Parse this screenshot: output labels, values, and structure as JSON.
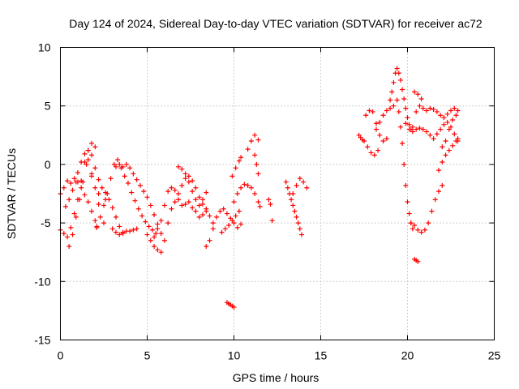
{
  "chart_data": {
    "type": "scatter",
    "title": "Day 124 of 2024, Sidereal Day-to-day VTEC variation (SDTVAR) for receiver ac72",
    "xlabel": "GPS time / hours",
    "ylabel": "SDTVAR / TECUs",
    "xlim": [
      0,
      25
    ],
    "ylim": [
      -15,
      10
    ],
    "xticks": [
      0,
      5,
      10,
      15,
      20,
      25
    ],
    "yticks": [
      -15,
      -10,
      -5,
      0,
      5,
      10
    ],
    "xtick_labels": [
      "0",
      "5",
      "10",
      "15",
      "20",
      "25"
    ],
    "ytick_labels": [
      "-15",
      "-10",
      "-5",
      "0",
      "5",
      "10"
    ],
    "grid": true,
    "marker": "+",
    "color": "#ff0000",
    "series": [
      {
        "name": "s1",
        "x": [
          0.0,
          0.2,
          0.4,
          0.6,
          0.8,
          1.0,
          1.2,
          1.4,
          1.6,
          1.8,
          2.0,
          2.1
        ],
        "y": [
          -2.5,
          -2.0,
          -1.4,
          -1.6,
          -1.2,
          -1.5,
          -2.0,
          -2.6,
          -3.2,
          -4.0,
          -4.8,
          -5.4
        ]
      },
      {
        "name": "s2",
        "x": [
          0.0,
          0.2,
          0.4,
          0.6,
          0.8,
          1.0,
          1.2,
          1.4,
          1.6,
          1.8,
          2.0
        ],
        "y": [
          -5.6,
          -5.9,
          -6.2,
          -5.4,
          -4.2,
          -3.0,
          -1.4,
          0.2,
          1.2,
          1.8,
          1.5
        ]
      },
      {
        "name": "s3",
        "x": [
          0.5,
          0.7,
          0.9,
          1.1,
          1.3,
          1.5,
          1.8,
          2.2,
          2.6
        ],
        "y": [
          -7.0,
          -6.0,
          -4.5,
          -3.0,
          -1.5,
          0.0,
          -1.0,
          -2.5,
          -3.0
        ]
      },
      {
        "name": "s4",
        "x": [
          0.3,
          0.5,
          0.7,
          0.9,
          1.0,
          1.2,
          1.4,
          1.6,
          1.8,
          2.0,
          2.2,
          2.5
        ],
        "y": [
          -3.6,
          -3.0,
          -2.2,
          -1.5,
          -0.7,
          0.2,
          0.9,
          0.4,
          -0.8,
          -2.0,
          -3.4,
          -5.0
        ]
      },
      {
        "name": "s5",
        "x": [
          1.6,
          1.8,
          2.0,
          2.2,
          2.4,
          2.6,
          2.8,
          3.0,
          3.2,
          3.4,
          3.6
        ],
        "y": [
          1.2,
          0.8,
          -0.3,
          -1.3,
          -2.0,
          -2.4,
          -3.0,
          -3.7,
          -4.5,
          -5.3,
          -5.8
        ]
      },
      {
        "name": "s6",
        "x": [
          2.1,
          2.3,
          2.5,
          2.7,
          2.9,
          3.1,
          3.3,
          3.5,
          3.7,
          3.9,
          4.1,
          4.3,
          4.5,
          4.7,
          4.9,
          5.1,
          5.3,
          5.5
        ],
        "y": [
          -5.3,
          -4.5,
          -3.5,
          -2.5,
          -1.2,
          0.0,
          0.4,
          -0.3,
          -1.0,
          -1.6,
          -2.4,
          -3.1,
          -3.8,
          -4.4,
          -4.9,
          -5.3,
          -5.6,
          -5.9
        ]
      },
      {
        "name": "s7",
        "x": [
          3.2,
          3.4,
          3.6,
          3.8,
          4.0,
          4.2,
          4.4,
          4.6,
          4.8,
          5.0,
          5.2,
          5.4,
          5.6,
          5.8
        ],
        "y": [
          -0.2,
          0.0,
          -0.2,
          0.0,
          -0.3,
          -0.8,
          -1.3,
          -1.8,
          -2.3,
          -2.8,
          -3.5,
          -4.3,
          -5.1,
          -5.9
        ]
      },
      {
        "name": "s8",
        "x": [
          3.0,
          3.2,
          3.4,
          3.6,
          3.8,
          4.0,
          4.2,
          4.4
        ],
        "y": [
          -5.5,
          -5.8,
          -6.0,
          -5.9,
          -5.7,
          -5.7,
          -5.6,
          -5.5
        ]
      },
      {
        "name": "s9",
        "x": [
          5.0,
          5.2,
          5.4,
          5.6,
          5.8,
          6.0,
          6.2,
          6.4,
          6.6,
          6.8,
          7.0,
          7.2,
          7.4,
          7.6,
          7.8,
          8.0,
          8.2,
          8.4
        ],
        "y": [
          -6.0,
          -6.5,
          -6.2,
          -5.5,
          -4.8,
          -3.5,
          -2.3,
          -2.0,
          -2.2,
          -3.0,
          -3.5,
          -3.4,
          -3.2,
          -3.7,
          -4.0,
          -4.5,
          -4.3,
          -4.0
        ]
      },
      {
        "name": "s10",
        "x": [
          5.4,
          5.6,
          5.8,
          6.0,
          6.2,
          6.4,
          6.6,
          6.8,
          7.0,
          7.2,
          7.4,
          7.6,
          7.8,
          8.0,
          8.2,
          8.4
        ],
        "y": [
          -7.0,
          -7.3,
          -7.5,
          -6.5,
          -5.0,
          -3.8,
          -3.2,
          -2.5,
          -1.8,
          -1.2,
          -1.5,
          -2.3,
          -3.0,
          -3.5,
          -3.0,
          -2.4
        ]
      },
      {
        "name": "s11",
        "x": [
          6.8,
          7.0,
          7.2,
          7.4,
          7.6,
          7.8,
          8.0,
          8.2,
          8.4,
          8.6,
          8.8
        ],
        "y": [
          -0.2,
          -0.4,
          -0.8,
          -1.0,
          -1.4,
          -2.0,
          -2.8,
          -3.4,
          -3.8,
          -4.4,
          -5.0
        ]
      },
      {
        "name": "s12",
        "x": [
          8.4,
          8.6,
          8.8,
          9.0,
          9.2,
          9.4,
          9.6,
          9.8,
          10.0,
          10.2,
          10.4
        ],
        "y": [
          -7.0,
          -6.5,
          -5.5,
          -4.5,
          -4.0,
          -3.8,
          -4.2,
          -4.6,
          -5.0,
          -5.4,
          -5.1
        ]
      },
      {
        "name": "s13",
        "x": [
          9.3,
          9.5,
          9.7,
          9.9,
          10.1,
          10.3
        ],
        "y": [
          -5.8,
          -5.5,
          -5.2,
          -4.8,
          -4.4,
          -4.0
        ]
      },
      {
        "name": "s14",
        "x": [
          10.0,
          10.2,
          10.4,
          10.6,
          10.8,
          11.0,
          11.2,
          11.4,
          11.5
        ],
        "y": [
          -3.2,
          -2.5,
          -2.0,
          -1.7,
          -1.8,
          -2.0,
          -2.5,
          -3.2,
          -3.6
        ]
      },
      {
        "name": "s15",
        "x": [
          9.9,
          10.1,
          10.3,
          10.4
        ],
        "y": [
          -1.0,
          -0.3,
          0.3,
          0.6
        ]
      },
      {
        "name": "s16",
        "x": [
          10.8,
          11.0,
          11.2,
          11.4
        ],
        "y": [
          1.3,
          2.0,
          2.5,
          2.1
        ]
      },
      {
        "name": "s17",
        "x": [
          11.2,
          11.3,
          11.4
        ],
        "y": [
          0.8,
          0.0,
          -0.8
        ]
      },
      {
        "name": "s18",
        "x": [
          9.6,
          9.7,
          9.8,
          9.9,
          10.0
        ],
        "y": [
          -11.8,
          -11.9,
          -12.0,
          -12.1,
          -12.2
        ]
      },
      {
        "name": "s19",
        "x": [
          12.0,
          12.1,
          12.2
        ],
        "y": [
          -3.0,
          -3.4,
          -4.8
        ]
      },
      {
        "name": "s20",
        "x": [
          13.0,
          13.1,
          13.2,
          13.3,
          13.4,
          13.5,
          13.6,
          13.7,
          13.8,
          13.9
        ],
        "y": [
          -1.5,
          -2.0,
          -2.5,
          -3.0,
          -3.5,
          -4.0,
          -4.5,
          -5.0,
          -5.5,
          -6.0
        ]
      },
      {
        "name": "s21",
        "x": [
          13.4,
          13.6,
          13.8,
          14.0,
          14.2
        ],
        "y": [
          -2.5,
          -1.8,
          -1.2,
          -1.5,
          -2.0
        ]
      },
      {
        "name": "s22",
        "x": [
          17.2,
          17.3,
          17.4,
          17.5
        ],
        "y": [
          2.5,
          2.3,
          2.1,
          2.0
        ]
      },
      {
        "name": "s23",
        "x": [
          17.6,
          17.8,
          18.0,
          18.2,
          18.4,
          18.6,
          18.8
        ],
        "y": [
          4.2,
          4.6,
          4.5,
          3.5,
          2.5,
          2.0,
          2.2
        ]
      },
      {
        "name": "s24",
        "x": [
          18.2,
          18.4,
          18.6,
          18.8,
          19.0,
          19.2
        ],
        "y": [
          3.0,
          3.6,
          4.2,
          4.6,
          4.8,
          5.0
        ]
      },
      {
        "name": "s25",
        "x": [
          17.7,
          17.9,
          18.1,
          18.3
        ],
        "y": [
          1.5,
          1.0,
          0.8,
          1.2
        ]
      },
      {
        "name": "s26",
        "x": [
          19.0,
          19.1,
          19.2,
          19.3,
          19.4,
          19.5,
          19.6,
          19.7,
          19.8,
          19.9,
          20.0,
          20.1,
          20.2,
          20.3
        ],
        "y": [
          5.5,
          6.2,
          7.0,
          7.8,
          8.2,
          7.8,
          7.2,
          6.4,
          5.6,
          4.8,
          4.0,
          3.4,
          3.0,
          2.8
        ]
      },
      {
        "name": "s27",
        "x": [
          19.4,
          19.5,
          19.6,
          19.7,
          19.8,
          19.9,
          20.0,
          20.1,
          20.2,
          20.3
        ],
        "y": [
          5.5,
          4.5,
          3.2,
          1.8,
          0.0,
          -1.8,
          -3.2,
          -4.2,
          -5.0,
          -5.5
        ]
      },
      {
        "name": "s28",
        "x": [
          20.2,
          20.4,
          20.6,
          20.8,
          21.0,
          21.2,
          21.4,
          21.6,
          21.8,
          22.0
        ],
        "y": [
          -5.0,
          -5.2,
          -5.6,
          -5.8,
          -5.6,
          -5.0,
          -4.0,
          -3.0,
          -2.3,
          -1.8
        ]
      },
      {
        "name": "s29",
        "x": [
          19.9,
          20.1,
          20.3,
          20.5,
          20.7,
          20.9,
          21.1,
          21.3,
          21.5,
          21.7,
          21.9,
          22.1,
          22.3,
          22.5,
          22.7,
          22.9
        ],
        "y": [
          3.5,
          3.0,
          3.2,
          4.5,
          5.0,
          4.8,
          4.6,
          4.8,
          4.7,
          4.5,
          4.2,
          4.0,
          4.3,
          4.6,
          4.8,
          4.6
        ]
      },
      {
        "name": "s30",
        "x": [
          20.5,
          20.7,
          20.9,
          21.1,
          21.3,
          21.5,
          21.7,
          21.9,
          22.1,
          22.3,
          22.5,
          22.7,
          22.9
        ],
        "y": [
          3.0,
          3.1,
          3.0,
          2.8,
          2.5,
          2.2,
          2.6,
          3.0,
          3.4,
          3.6,
          3.2,
          2.6,
          2.0
        ]
      },
      {
        "name": "s31",
        "x": [
          21.8,
          22.0,
          22.2,
          22.4,
          22.6,
          22.8,
          22.9
        ],
        "y": [
          -0.5,
          0.2,
          0.8,
          1.2,
          1.6,
          2.0,
          2.2
        ]
      },
      {
        "name": "s32",
        "x": [
          22.0,
          22.2,
          22.4,
          22.6,
          22.8
        ],
        "y": [
          1.5,
          2.0,
          3.0,
          3.8,
          4.2
        ]
      },
      {
        "name": "s33",
        "x": [
          20.4,
          20.5,
          20.6
        ],
        "y": [
          -8.1,
          -8.2,
          -8.3
        ]
      },
      {
        "name": "s34",
        "x": [
          20.4,
          20.6,
          20.8
        ],
        "y": [
          6.2,
          6.0,
          5.6
        ]
      }
    ]
  }
}
